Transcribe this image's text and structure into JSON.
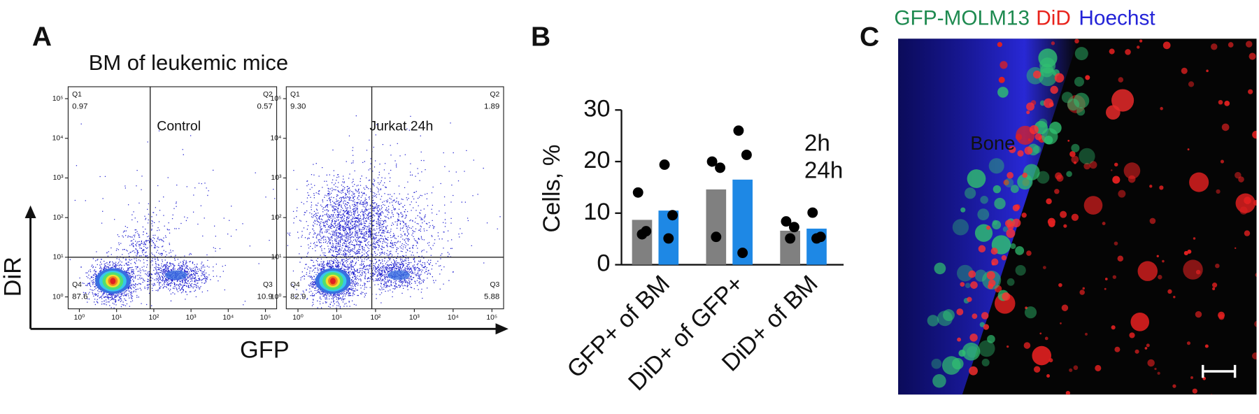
{
  "panel_labels": [
    "A",
    "B",
    "C"
  ],
  "panel_a": {
    "title": "BM of leukemic mice",
    "x_label": "GFP",
    "y_label": "DiR"
  },
  "chart_data": [
    {
      "type": "flow",
      "label": "Control",
      "log_scale": true,
      "xlim": [
        0.5,
        200000
      ],
      "ylim": [
        0.5,
        200000
      ],
      "xticks": [
        {
          "value": 1,
          "label": "10⁰"
        },
        {
          "value": 10,
          "label": "10¹"
        },
        {
          "value": 100,
          "label": "10²"
        },
        {
          "value": 1000,
          "label": "10³"
        },
        {
          "value": 10000,
          "label": "10⁴"
        },
        {
          "value": 100000,
          "label": "10⁵"
        }
      ],
      "yticks": [
        {
          "value": 1,
          "label": "10⁰"
        },
        {
          "value": 10,
          "label": "10¹"
        },
        {
          "value": 100,
          "label": "10²"
        },
        {
          "value": 1000,
          "label": "10³"
        },
        {
          "value": 10000,
          "label": "10⁴"
        },
        {
          "value": 100000,
          "label": "10⁵"
        }
      ],
      "gates": {
        "x": 80,
        "y": 10
      },
      "quadrants": [
        "Q1",
        "Q2",
        "Q3",
        "Q4"
      ],
      "values": [
        0.97,
        0.57,
        10.9,
        87.6
      ]
    },
    {
      "type": "flow",
      "label": "Jurkat 24h",
      "log_scale": true,
      "xlim": [
        0.5,
        200000
      ],
      "ylim": [
        0.5,
        200000
      ],
      "xticks": [
        {
          "value": 1,
          "label": "10⁰"
        },
        {
          "value": 10,
          "label": "10¹"
        },
        {
          "value": 100,
          "label": "10²"
        },
        {
          "value": 1000,
          "label": "10³"
        },
        {
          "value": 10000,
          "label": "10⁴"
        },
        {
          "value": 100000,
          "label": "10⁵"
        }
      ],
      "yticks": [
        {
          "value": 1,
          "label": "10⁰"
        },
        {
          "value": 10,
          "label": "10¹"
        },
        {
          "value": 100,
          "label": "10²"
        },
        {
          "value": 1000,
          "label": "10³"
        },
        {
          "value": 10000,
          "label": "10⁴"
        },
        {
          "value": 100000,
          "label": "10⁵"
        }
      ],
      "gates": {
        "x": 80,
        "y": 10
      },
      "quadrants": [
        "Q1",
        "Q2",
        "Q3",
        "Q4"
      ],
      "values": [
        9.3,
        1.89,
        5.88,
        82.9
      ],
      "value_labels": [
        "9.30",
        "1.89",
        "5.88",
        "82.9"
      ]
    },
    {
      "type": "bar",
      "y_label": "Cells, %",
      "categories": [
        "GFP+ of BM",
        "DiD+ of GFP+",
        "DiD+ of BM"
      ],
      "ylim": [
        0,
        30
      ],
      "yticks": [
        0,
        10,
        20,
        30
      ],
      "series": [
        {
          "name": "2h",
          "color": "#808080",
          "legend_color": "#111111",
          "values": [
            8.7,
            14.6,
            6.6
          ],
          "points": [
            [
              14,
              6.5,
              5.9
            ],
            [
              20,
              18.8,
              5.4
            ],
            [
              8.4,
              7.3,
              5.1
            ]
          ]
        },
        {
          "name": "24h",
          "color": "#1e88e5",
          "legend_color": "#1e88e5",
          "values": [
            10.5,
            16.5,
            7.0
          ],
          "points": [
            [
              19.4,
              9.6,
              5.1
            ],
            [
              26,
              21.3,
              2.3
            ],
            [
              10.1,
              5.4,
              5.1
            ]
          ]
        }
      ]
    }
  ],
  "panel_c": {
    "title": [
      "GFP-MOLM13",
      "DiD",
      "Hoechst"
    ],
    "title_colors": [
      "#1e8a50",
      "#e8231c",
      "#2323d8"
    ],
    "annotation": "Bone",
    "annotation_color": "#e8e020"
  }
}
